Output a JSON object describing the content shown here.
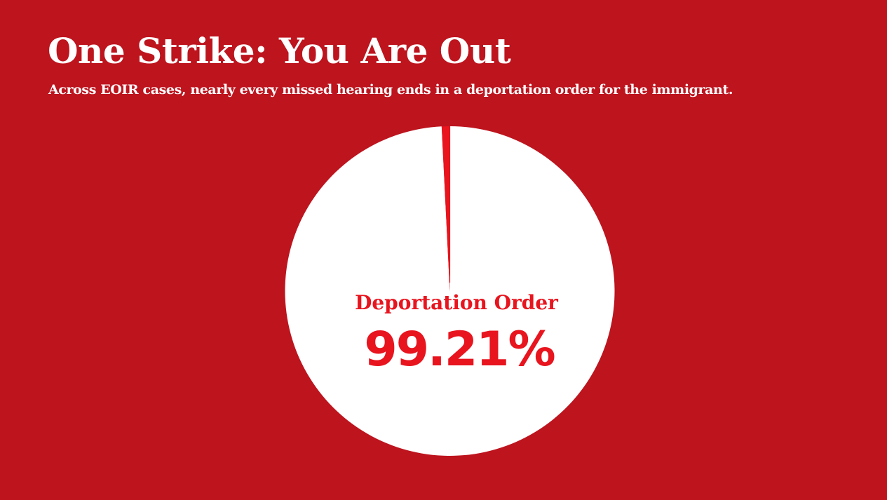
{
  "chart_data": {
    "type": "pie",
    "title": "One Strike: You Are Out",
    "subtitle": "Across EOIR cases, nearly every missed hearing ends in a deportation order for the immigrant.",
    "slices": [
      {
        "name": "Deportation Order",
        "value": 99.21,
        "value_label": "99.21%",
        "color": "#ffffff",
        "labeled": true
      },
      {
        "name": "",
        "value": 0.79,
        "color": "#e8141e",
        "labeled": false
      }
    ],
    "legend": "none"
  },
  "colors": {
    "background": "#bd141e",
    "title_text": "#ffffff",
    "label_text": "#e8141e",
    "divider": "#e8141e"
  }
}
